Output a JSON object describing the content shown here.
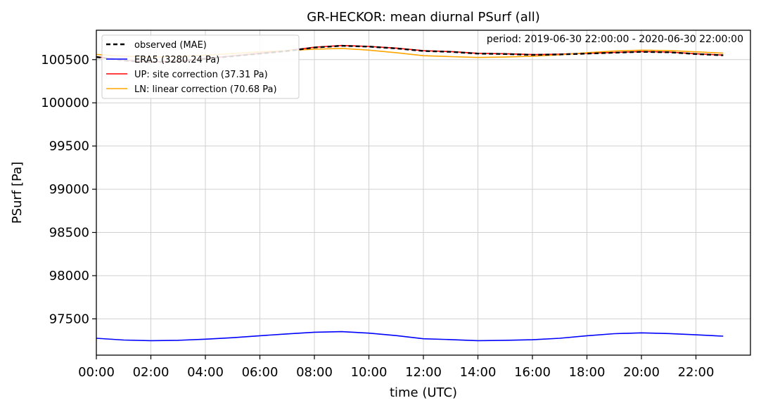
{
  "chart_data": {
    "type": "line",
    "title": "GR-HECKOR: mean diurnal PSurf (all)",
    "annotation": "period: 2019-06-30 22:00:00 - 2020-06-30 22:00:00",
    "xlabel": "time (UTC)",
    "ylabel": "PSurf [Pa]",
    "xlim": [
      0,
      24
    ],
    "ylim": [
      97080,
      100840
    ],
    "grid": true,
    "legend_position": "top-left",
    "x_ticks": [
      0,
      2,
      4,
      6,
      8,
      10,
      12,
      14,
      16,
      18,
      20,
      22
    ],
    "x_tick_labels": [
      "00:00",
      "02:00",
      "04:00",
      "06:00",
      "08:00",
      "10:00",
      "12:00",
      "14:00",
      "16:00",
      "18:00",
      "20:00",
      "22:00"
    ],
    "y_ticks": [
      97500,
      98000,
      98500,
      99000,
      99500,
      100000,
      100500
    ],
    "y_tick_labels": [
      "97500",
      "98000",
      "98500",
      "99000",
      "99500",
      "100000",
      "100500"
    ],
    "x": [
      0,
      1,
      2,
      3,
      4,
      5,
      6,
      7,
      8,
      9,
      10,
      11,
      12,
      13,
      14,
      15,
      16,
      17,
      18,
      19,
      20,
      21,
      22,
      23
    ],
    "series": [
      {
        "name": "observed (MAE)",
        "color": "#000000",
        "dash": true,
        "values": [
          100530,
          100490,
          100470,
          100480,
          100510,
          100540,
          100570,
          100600,
          100640,
          100660,
          100650,
          100630,
          100600,
          100590,
          100570,
          100565,
          100555,
          100560,
          100570,
          100580,
          100590,
          100585,
          100565,
          100550
        ]
      },
      {
        "name": "ERA5 (3280.24 Pa)",
        "color": "#0000ff",
        "dash": false,
        "values": [
          97275,
          97255,
          97248,
          97252,
          97265,
          97282,
          97305,
          97326,
          97345,
          97352,
          97335,
          97306,
          97270,
          97260,
          97248,
          97252,
          97258,
          97275,
          97305,
          97328,
          97338,
          97330,
          97315,
          97300
        ]
      },
      {
        "name": "UP: site correction (37.31 Pa)",
        "color": "#ff0000",
        "dash": false,
        "values": [
          100533,
          100493,
          100473,
          100483,
          100513,
          100543,
          100573,
          100603,
          100643,
          100663,
          100653,
          100633,
          100603,
          100593,
          100573,
          100568,
          100558,
          100563,
          100573,
          100583,
          100593,
          100588,
          100568,
          100553
        ]
      },
      {
        "name": "LN: linear correction (70.68 Pa)",
        "color": "#ffa500",
        "dash": false,
        "values": [
          100560,
          100540,
          100530,
          100535,
          100550,
          100570,
          100590,
          100605,
          100620,
          100630,
          100610,
          100580,
          100545,
          100535,
          100525,
          100530,
          100540,
          100555,
          100580,
          100600,
          100610,
          100605,
          100590,
          100575
        ]
      }
    ]
  }
}
